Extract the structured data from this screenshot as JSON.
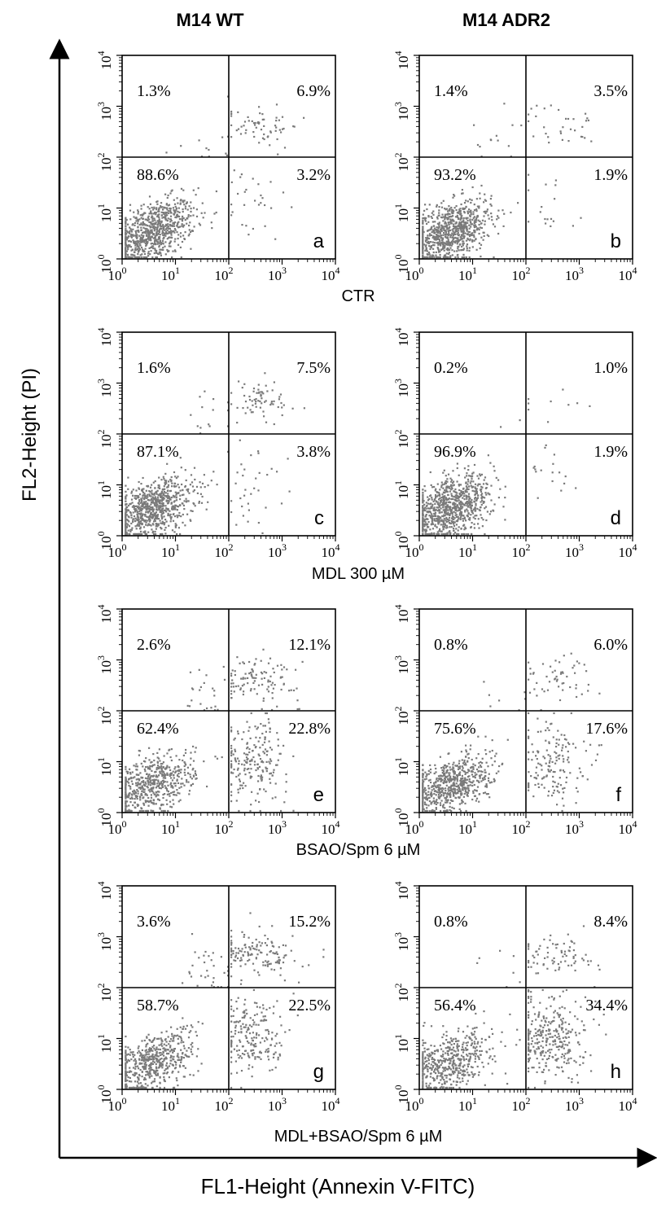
{
  "column_headers": [
    "M14 WT",
    "M14 ADR2"
  ],
  "row_labels": [
    "CTR",
    "MDL 300 µM",
    "BSAO/Spm 6 µM",
    "MDL+BSAO/Spm 6 µM"
  ],
  "y_axis_label": "FL2-Height (PI)",
  "x_axis_label": "FL1-Height (Annexin V-FITC)",
  "tick_labels": [
    "10^0",
    "10^1",
    "10^2",
    "10^3",
    "10^4"
  ],
  "colors": {
    "dots": "#7a7a7a",
    "frame": "#000000",
    "background": "#ffffff"
  },
  "chart_data": {
    "type": "scatter",
    "xscale": "log",
    "yscale": "log",
    "xlim": [
      1,
      10000
    ],
    "ylim": [
      1,
      10000
    ],
    "xlabel": "FL1-Height (Annexin V-FITC)",
    "ylabel": "FL2-Height (PI)",
    "panels": [
      {
        "letter": "a",
        "column": "M14 WT",
        "condition": "CTR",
        "quadrants": {
          "upper_left": "1.3%",
          "upper_right": "6.9%",
          "lower_left": "88.6%",
          "lower_right": "3.2%"
        }
      },
      {
        "letter": "b",
        "column": "M14 ADR2",
        "condition": "CTR",
        "quadrants": {
          "upper_left": "1.4%",
          "upper_right": "3.5%",
          "lower_left": "93.2%",
          "lower_right": "1.9%"
        }
      },
      {
        "letter": "c",
        "column": "M14 WT",
        "condition": "MDL 300 µM",
        "quadrants": {
          "upper_left": "1.6%",
          "upper_right": "7.5%",
          "lower_left": "87.1%",
          "lower_right": "3.8%"
        }
      },
      {
        "letter": "d",
        "column": "M14 ADR2",
        "condition": "MDL 300 µM",
        "quadrants": {
          "upper_left": "0.2%",
          "upper_right": "1.0%",
          "lower_left": "96.9%",
          "lower_right": "1.9%"
        }
      },
      {
        "letter": "e",
        "column": "M14 WT",
        "condition": "BSAO/Spm 6 µM",
        "quadrants": {
          "upper_left": "2.6%",
          "upper_right": "12.1%",
          "lower_left": "62.4%",
          "lower_right": "22.8%"
        }
      },
      {
        "letter": "f",
        "column": "M14 ADR2",
        "condition": "BSAO/Spm 6 µM",
        "quadrants": {
          "upper_left": "0.8%",
          "upper_right": "6.0%",
          "lower_left": "75.6%",
          "lower_right": "17.6%"
        }
      },
      {
        "letter": "g",
        "column": "M14 WT",
        "condition": "MDL+BSAO/Spm 6 µM",
        "quadrants": {
          "upper_left": "3.6%",
          "upper_right": "15.2%",
          "lower_left": "58.7%",
          "lower_right": "22.5%"
        }
      },
      {
        "letter": "h",
        "column": "M14 ADR2",
        "condition": "MDL+BSAO/Spm 6 µM",
        "quadrants": {
          "upper_left": "0.8%",
          "upper_right": "8.4%",
          "lower_left": "56.4%",
          "lower_right": "34.4%"
        }
      }
    ]
  }
}
